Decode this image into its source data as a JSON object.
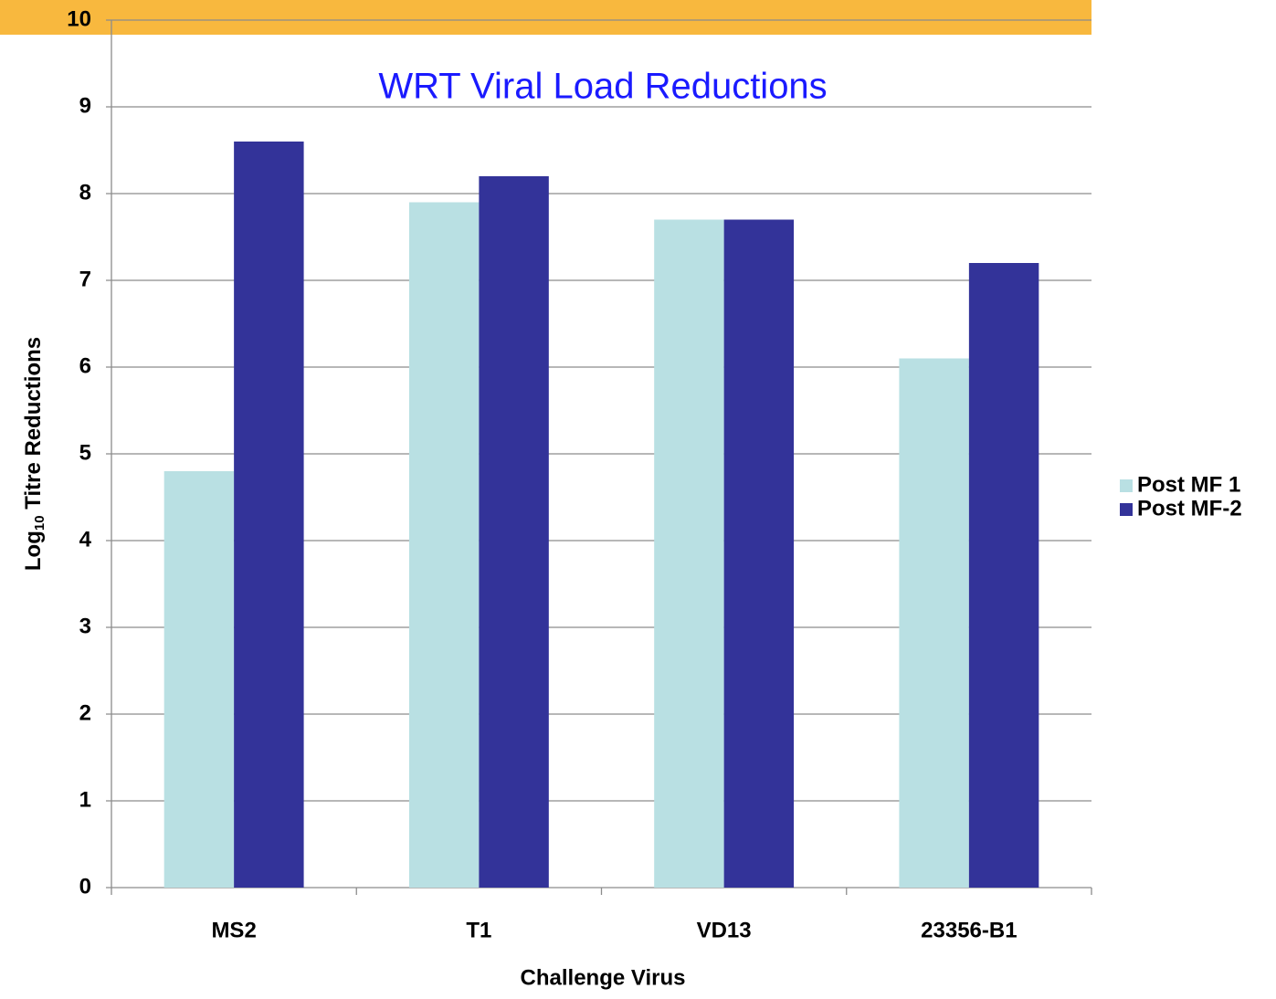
{
  "chart_data": {
    "type": "bar",
    "title": "WRT Viral Load Reductions",
    "x_label": "Challenge Virus",
    "y_label": {
      "base": "Log",
      "subscript": "10",
      "rest": " Titre Reductions"
    },
    "categories": [
      "MS2",
      "T1",
      "VD13",
      "23356-B1"
    ],
    "series": [
      {
        "name": "Post MF 1",
        "color": "#b9e0e3",
        "values": [
          4.8,
          7.9,
          7.7,
          6.1
        ]
      },
      {
        "name": "Post MF-2",
        "color": "#333399",
        "values": [
          8.6,
          8.2,
          7.7,
          7.2
        ]
      }
    ],
    "ylim": [
      0,
      10
    ],
    "yticks": [
      0,
      1,
      2,
      3,
      4,
      5,
      6,
      7,
      8,
      9,
      10
    ],
    "grid": true,
    "legend": "right"
  }
}
